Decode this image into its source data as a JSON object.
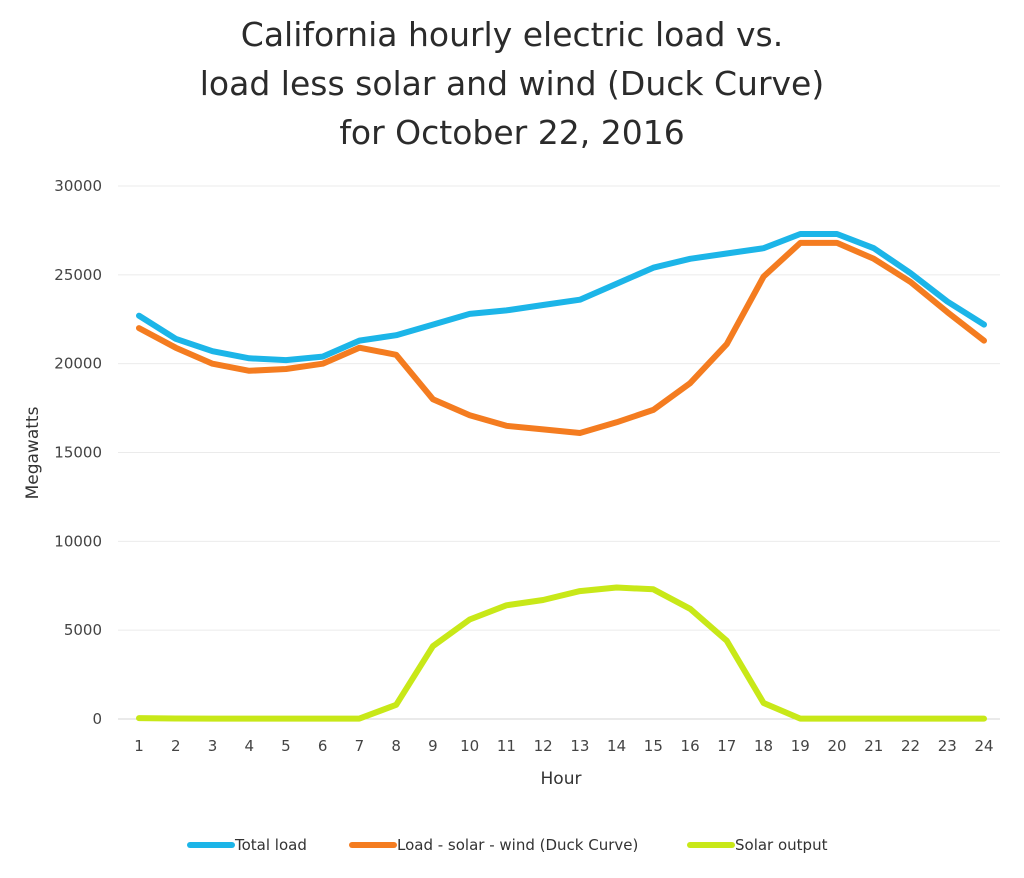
{
  "chart_data": {
    "type": "line",
    "title_lines": [
      "California hourly electric load vs.",
      "load less solar and wind (Duck Curve)",
      "for October 22, 2016"
    ],
    "xlabel": "Hour",
    "ylabel": "Megawatts",
    "x": [
      1,
      2,
      3,
      4,
      5,
      6,
      7,
      8,
      9,
      10,
      11,
      12,
      13,
      14,
      15,
      16,
      17,
      18,
      19,
      20,
      21,
      22,
      23,
      24
    ],
    "ylim": [
      0,
      30000
    ],
    "yticks": [
      0,
      5000,
      10000,
      15000,
      20000,
      25000,
      30000
    ],
    "grid": true,
    "legend_position": "bottom",
    "series": [
      {
        "name": "Total load",
        "color": "#1cb5e8",
        "values": [
          22700,
          21400,
          20700,
          20300,
          20200,
          20400,
          21300,
          21600,
          22200,
          22800,
          23000,
          23300,
          23600,
          24500,
          25400,
          25900,
          26200,
          26500,
          27300,
          27300,
          26500,
          25100,
          23500,
          22200
        ]
      },
      {
        "name": "Load - solar - wind (Duck Curve)",
        "color": "#f47c20",
        "values": [
          22000,
          20900,
          20000,
          19600,
          19700,
          20000,
          20900,
          20500,
          18000,
          17100,
          16500,
          16300,
          16100,
          16700,
          17400,
          18900,
          21100,
          24900,
          26800,
          26800,
          25900,
          24600,
          22900,
          21300
        ]
      },
      {
        "name": "Solar output",
        "color": "#c8e818",
        "values": [
          50,
          30,
          20,
          20,
          20,
          20,
          20,
          800,
          4100,
          5600,
          6400,
          6700,
          7200,
          7400,
          7300,
          6200,
          4400,
          900,
          20,
          20,
          20,
          20,
          20,
          20
        ]
      }
    ]
  }
}
